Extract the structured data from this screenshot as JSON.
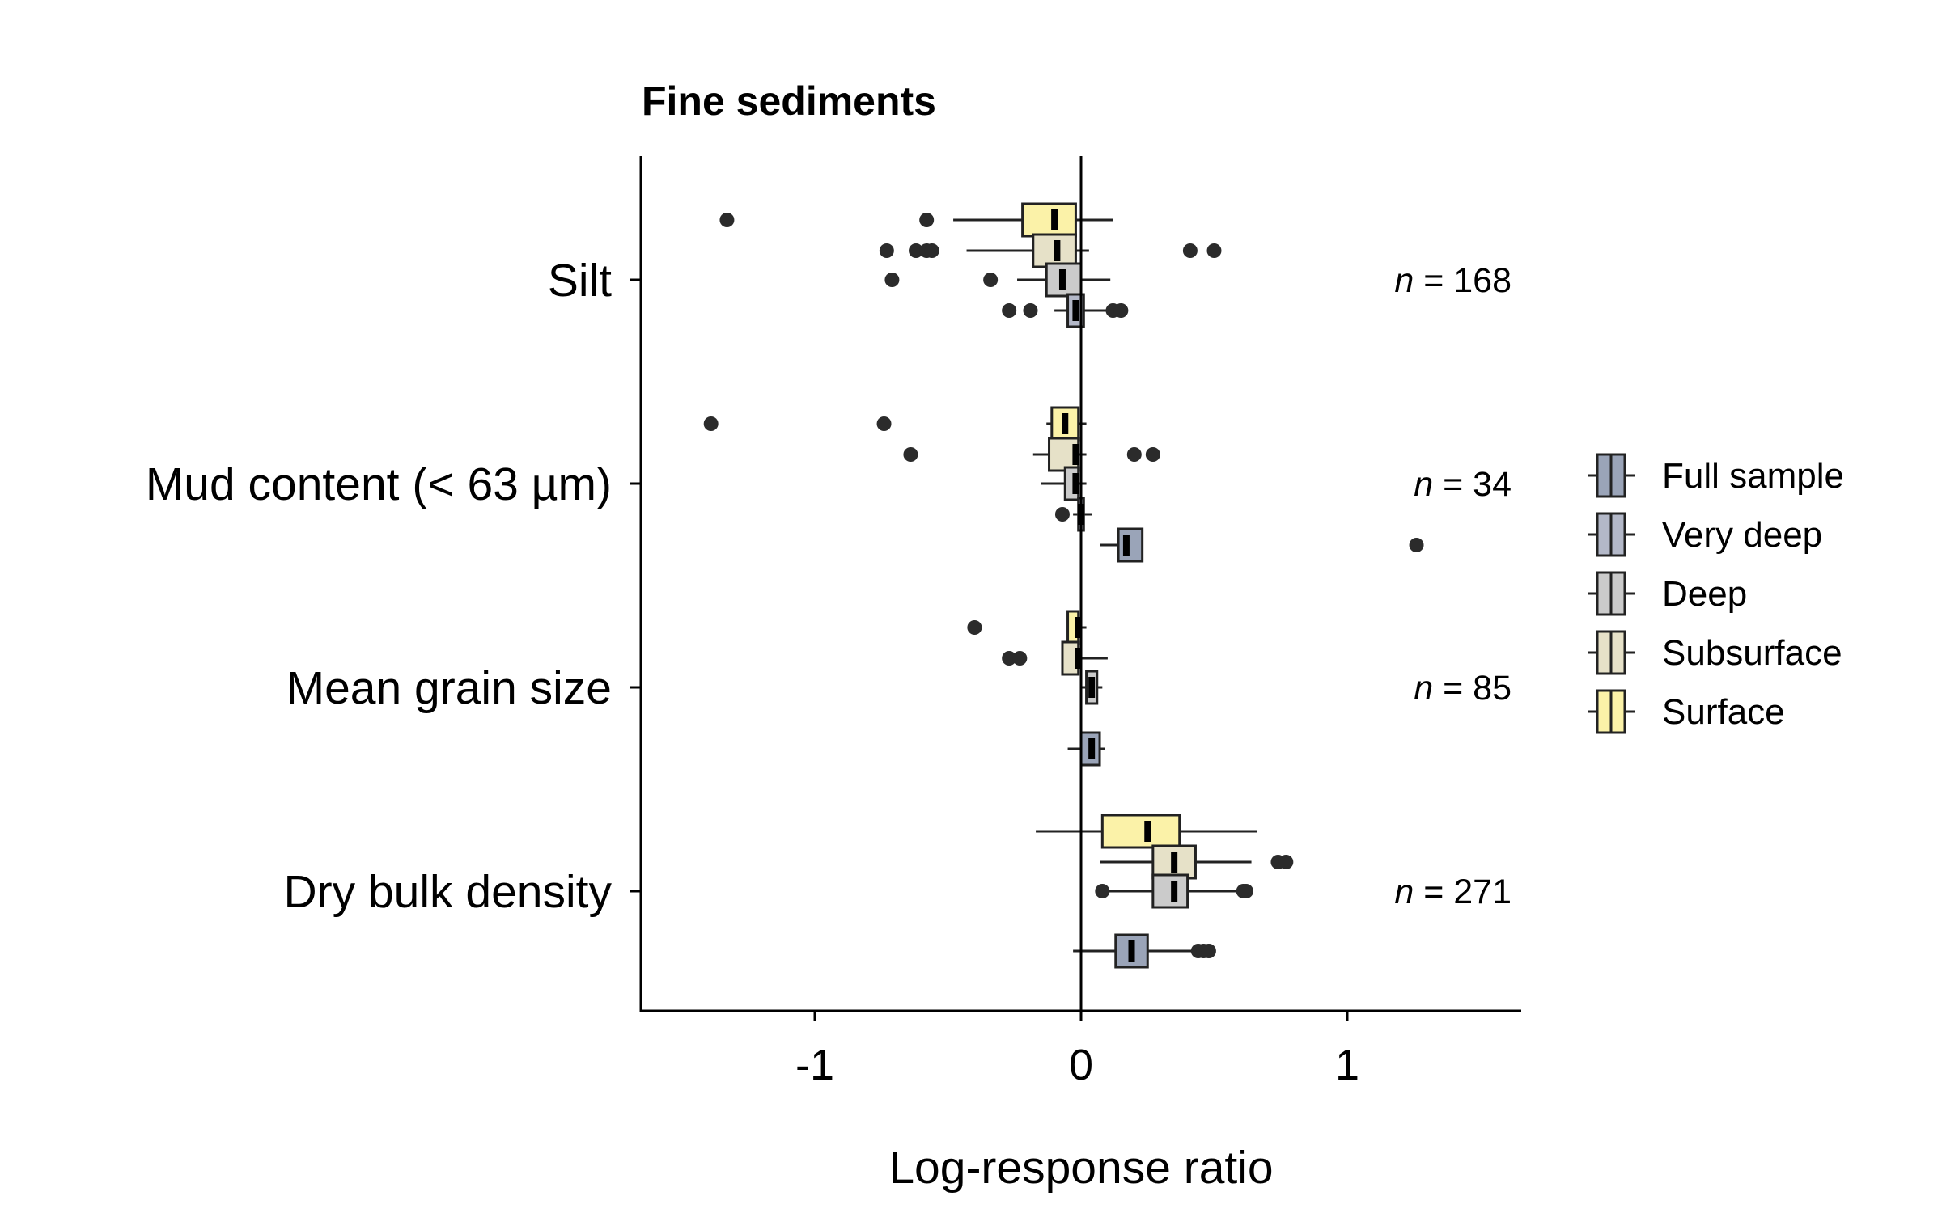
{
  "chart_data": {
    "type": "boxplot",
    "title": "Fine sediments",
    "xlabel": "Log-response ratio",
    "xlim": [
      -1.65,
      1.65
    ],
    "x_ticks": [
      -1,
      0,
      1
    ],
    "x_tick_labels": [
      "-1",
      "0",
      "1"
    ],
    "categories": [
      "Silt",
      "Mud content (< 63 µm)",
      "Mean grain size",
      "Dry bulk density"
    ],
    "n_labels": [
      {
        "italic": "n",
        "rest": " = 168"
      },
      {
        "italic": "n",
        "rest": " = 34"
      },
      {
        "italic": "n",
        "rest": " = 85"
      },
      {
        "italic": "n",
        "rest": " = 271"
      }
    ],
    "legend_position": "right",
    "series": [
      {
        "name": "Full sample",
        "color": "#9aa4b8"
      },
      {
        "name": "Very deep",
        "color": "#b3b8c8"
      },
      {
        "name": "Deep",
        "color": "#cbcbcb"
      },
      {
        "name": "Subsurface",
        "color": "#e6e1c8"
      },
      {
        "name": "Surface",
        "color": "#fbf2a8"
      }
    ],
    "boxes": [
      {
        "category": "Silt",
        "series": "Surface",
        "q1": -0.22,
        "median": -0.1,
        "q3": -0.02,
        "whisker_low": -0.48,
        "whisker_high": 0.12,
        "outliers": [
          -1.33,
          -0.58
        ]
      },
      {
        "category": "Silt",
        "series": "Subsurface",
        "q1": -0.18,
        "median": -0.09,
        "q3": -0.02,
        "whisker_low": -0.43,
        "whisker_high": 0.03,
        "outliers": [
          -0.73,
          -0.62,
          -0.58,
          -0.56,
          0.41,
          0.5
        ]
      },
      {
        "category": "Silt",
        "series": "Deep",
        "q1": -0.13,
        "median": -0.07,
        "q3": 0.0,
        "whisker_low": -0.24,
        "whisker_high": 0.11,
        "outliers": [
          -0.71,
          -0.34
        ]
      },
      {
        "category": "Silt",
        "series": "Very deep",
        "q1": -0.05,
        "median": -0.02,
        "q3": 0.01,
        "whisker_low": -0.1,
        "whisker_high": 0.12,
        "outliers": [
          -0.27,
          -0.19,
          0.12,
          0.15
        ]
      },
      {
        "category": "Mud content (< 63 µm)",
        "series": "Surface",
        "q1": -0.11,
        "median": -0.06,
        "q3": -0.01,
        "whisker_low": -0.13,
        "whisker_high": 0.02,
        "outliers": [
          -1.39,
          -0.74
        ]
      },
      {
        "category": "Mud content (< 63 µm)",
        "series": "Subsurface",
        "q1": -0.12,
        "median": -0.02,
        "q3": -0.01,
        "whisker_low": -0.18,
        "whisker_high": 0.02,
        "outliers": [
          -0.64,
          0.2,
          0.27
        ]
      },
      {
        "category": "Mud content (< 63 µm)",
        "series": "Deep",
        "q1": -0.06,
        "median": -0.02,
        "q3": -0.01,
        "whisker_low": -0.15,
        "whisker_high": 0.02,
        "outliers": []
      },
      {
        "category": "Mud content (< 63 µm)",
        "series": "Very deep",
        "q1": -0.01,
        "median": 0.0,
        "q3": 0.01,
        "whisker_low": -0.03,
        "whisker_high": 0.04,
        "outliers": [
          -0.07
        ]
      },
      {
        "category": "Mud content (< 63 µm)",
        "series": "Full sample",
        "q1": 0.14,
        "median": 0.17,
        "q3": 0.23,
        "whisker_low": 0.07,
        "whisker_high": 0.23,
        "outliers": [
          1.26
        ]
      },
      {
        "category": "Mean grain size",
        "series": "Surface",
        "q1": -0.05,
        "median": -0.01,
        "q3": -0.01,
        "whisker_low": -0.05,
        "whisker_high": 0.02,
        "outliers": [
          -0.4
        ]
      },
      {
        "category": "Mean grain size",
        "series": "Subsurface",
        "q1": -0.07,
        "median": -0.01,
        "q3": -0.01,
        "whisker_low": -0.07,
        "whisker_high": 0.1,
        "outliers": [
          -0.27,
          -0.23
        ]
      },
      {
        "category": "Mean grain size",
        "series": "Deep",
        "q1": 0.02,
        "median": 0.04,
        "q3": 0.06,
        "whisker_low": 0.0,
        "whisker_high": 0.08,
        "outliers": []
      },
      {
        "category": "Mean grain size",
        "series": "Full sample",
        "q1": 0.0,
        "median": 0.04,
        "q3": 0.07,
        "whisker_low": -0.05,
        "whisker_high": 0.09,
        "outliers": []
      },
      {
        "category": "Dry bulk density",
        "series": "Surface",
        "q1": 0.08,
        "median": 0.25,
        "q3": 0.37,
        "whisker_low": -0.17,
        "whisker_high": 0.66,
        "outliers": []
      },
      {
        "category": "Dry bulk density",
        "series": "Subsurface",
        "q1": 0.27,
        "median": 0.35,
        "q3": 0.43,
        "whisker_low": 0.07,
        "whisker_high": 0.64,
        "outliers": [
          0.74,
          0.77
        ]
      },
      {
        "category": "Dry bulk density",
        "series": "Deep",
        "q1": 0.27,
        "median": 0.35,
        "q3": 0.4,
        "whisker_low": 0.09,
        "whisker_high": 0.61,
        "outliers": [
          0.08,
          0.61,
          0.62
        ]
      },
      {
        "category": "Dry bulk density",
        "series": "Full sample",
        "q1": 0.13,
        "median": 0.19,
        "q3": 0.25,
        "whisker_low": -0.03,
        "whisker_high": 0.44,
        "outliers": [
          0.44,
          0.46,
          0.48
        ]
      }
    ]
  }
}
